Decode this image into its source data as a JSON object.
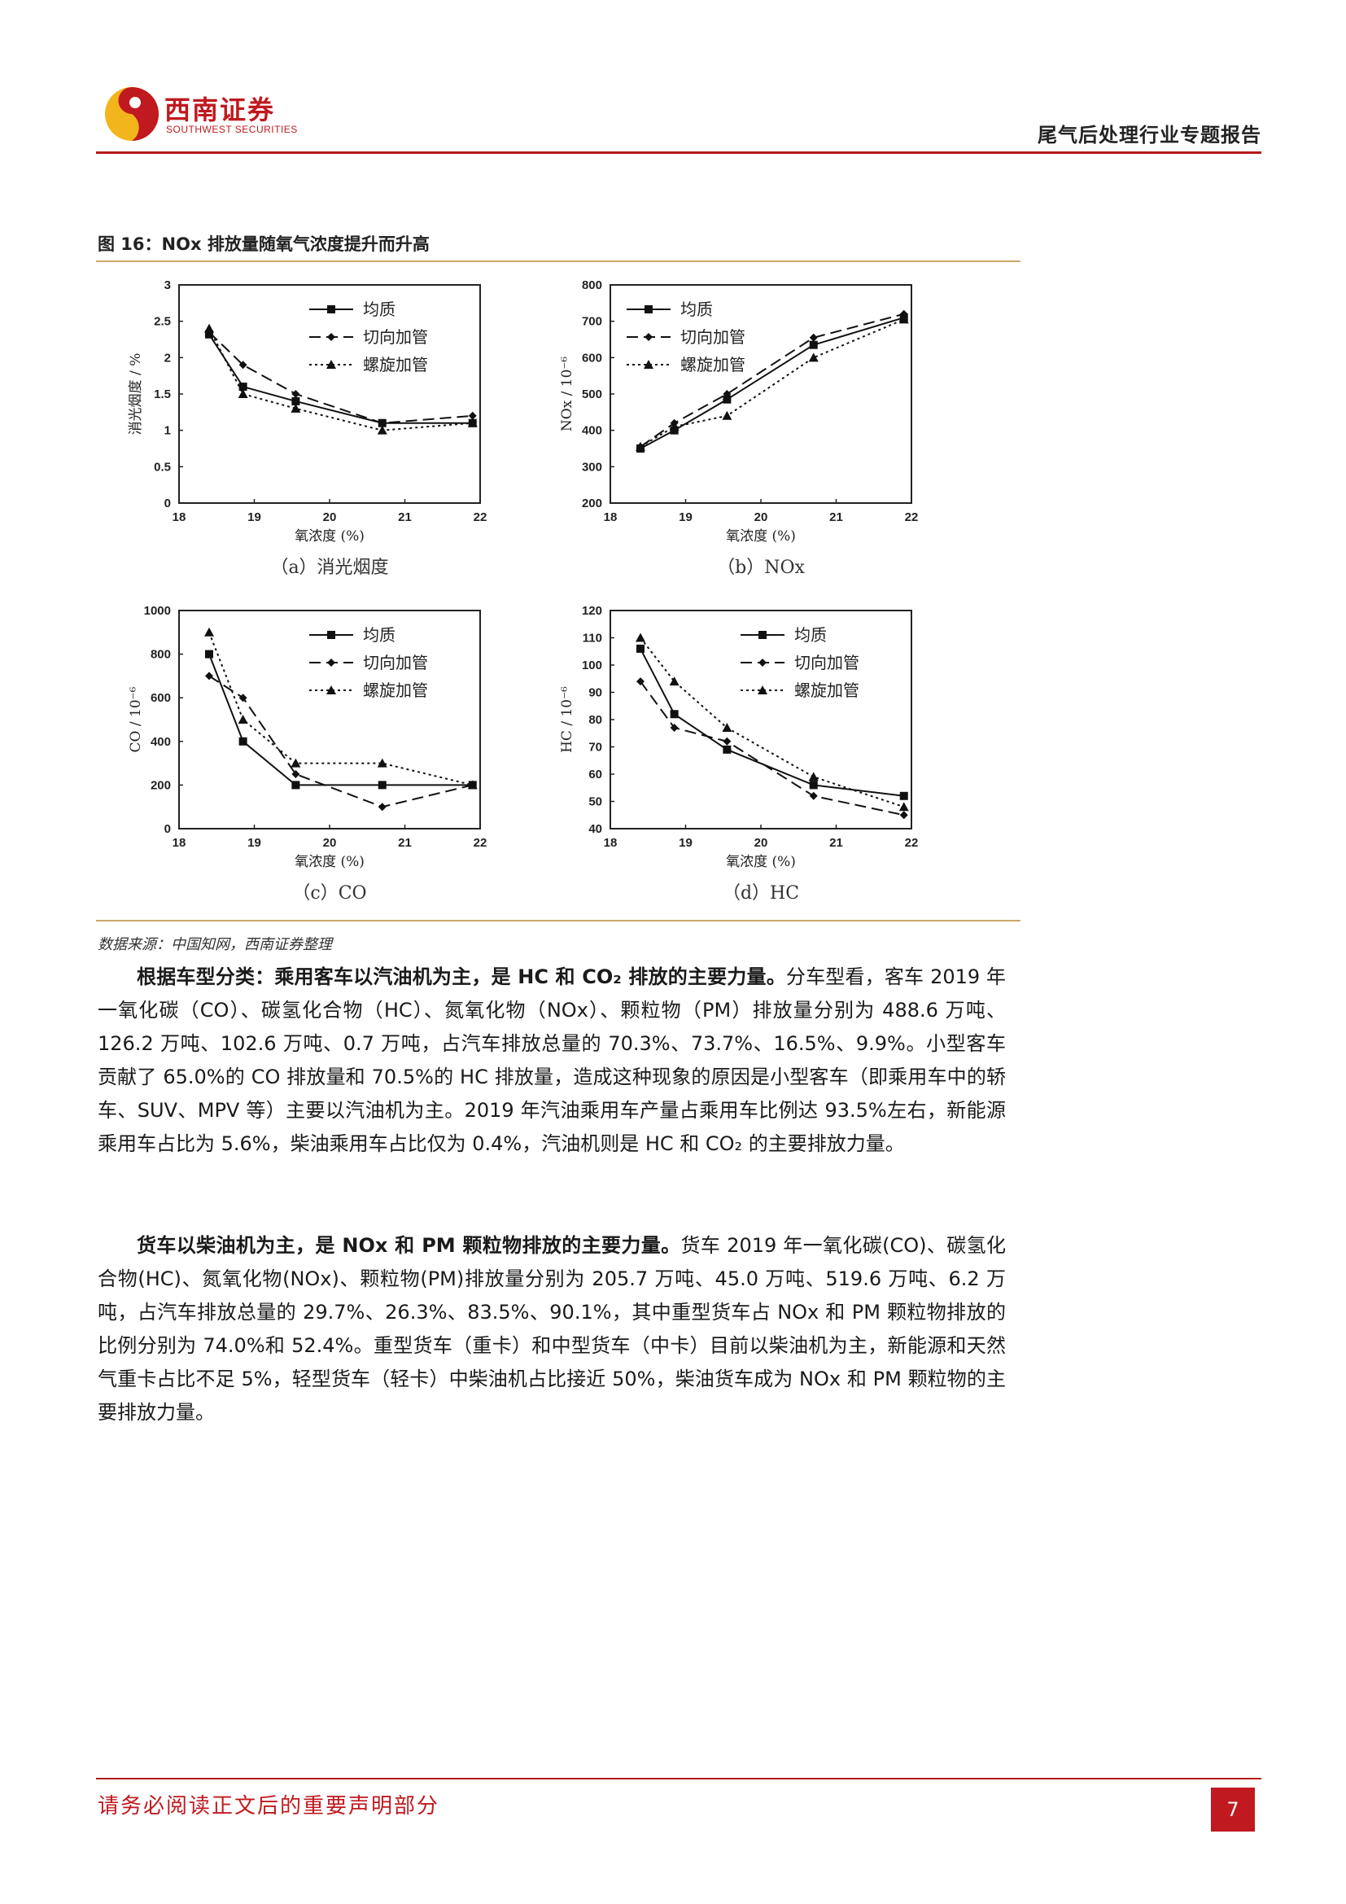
{
  "header": {
    "logo_cn": "西南证券",
    "logo_en": "SOUTHWEST SECURITIES",
    "report_title": "尾气后处理行业专题报告"
  },
  "figure": {
    "caption": "图 16：NOx 排放量随氧气浓度提升而升高",
    "source": "数据来源：中国知网，西南证券整理"
  },
  "chart_data": [
    {
      "type": "line",
      "title": "",
      "sublabel": "（a）消光烟度",
      "xlabel": "氧浓度 (%)",
      "ylabel": "消光烟度 / %",
      "xlim": [
        18,
        22
      ],
      "ylim": [
        0,
        3
      ],
      "x_ticks": [
        "18",
        "19",
        "20",
        "21",
        "22"
      ],
      "y_ticks": [
        "0",
        "0.5",
        "1",
        "1.5",
        "2",
        "2.5",
        "3"
      ],
      "legend_position": "top-right",
      "series": [
        {
          "name": "均质",
          "x": [
            18.4,
            18.85,
            19.55,
            20.7,
            21.9
          ],
          "values": [
            2.32,
            1.6,
            1.4,
            1.1,
            1.1
          ]
        },
        {
          "name": "切向加管",
          "x": [
            18.4,
            18.85,
            19.55,
            20.7,
            21.9
          ],
          "values": [
            2.35,
            1.9,
            1.5,
            1.1,
            1.2
          ]
        },
        {
          "name": "螺旋加管",
          "x": [
            18.4,
            18.85,
            19.55,
            20.7,
            21.9
          ],
          "values": [
            2.4,
            1.5,
            1.3,
            1.0,
            1.1
          ]
        }
      ]
    },
    {
      "type": "line",
      "title": "",
      "sublabel": "（b）NOx",
      "xlabel": "氧浓度 (%)",
      "ylabel": "NOx / 10⁻⁶",
      "xlim": [
        18,
        22
      ],
      "ylim": [
        200,
        800
      ],
      "x_ticks": [
        "18",
        "19",
        "20",
        "21",
        "22"
      ],
      "y_ticks": [
        "200",
        "300",
        "400",
        "500",
        "600",
        "700",
        "800"
      ],
      "legend_position": "top-left",
      "series": [
        {
          "name": "均质",
          "x": [
            18.4,
            18.85,
            19.55,
            20.7,
            21.9
          ],
          "values": [
            350,
            400,
            485,
            635,
            710
          ]
        },
        {
          "name": "切向加管",
          "x": [
            18.4,
            18.85,
            19.55,
            20.7,
            21.9
          ],
          "values": [
            355,
            420,
            500,
            655,
            720
          ]
        },
        {
          "name": "螺旋加管",
          "x": [
            18.4,
            18.85,
            19.55,
            20.7,
            21.9
          ],
          "values": [
            355,
            410,
            440,
            600,
            705
          ]
        }
      ]
    },
    {
      "type": "line",
      "title": "",
      "sublabel": "（c）CO",
      "xlabel": "氧浓度 (%)",
      "ylabel": "CO / 10⁻⁶",
      "xlim": [
        18,
        22
      ],
      "ylim": [
        0,
        1000
      ],
      "x_ticks": [
        "18",
        "19",
        "20",
        "21",
        "22"
      ],
      "y_ticks": [
        "0",
        "200",
        "400",
        "600",
        "800",
        "1000"
      ],
      "legend_position": "top-right",
      "series": [
        {
          "name": "均质",
          "x": [
            18.4,
            18.85,
            19.55,
            20.7,
            21.9
          ],
          "values": [
            800,
            400,
            200,
            200,
            200
          ]
        },
        {
          "name": "切向加管",
          "x": [
            18.4,
            18.85,
            19.55,
            20.7,
            21.9
          ],
          "values": [
            700,
            600,
            250,
            100,
            200
          ]
        },
        {
          "name": "螺旋加管",
          "x": [
            18.4,
            18.85,
            19.55,
            20.7,
            21.9
          ],
          "values": [
            900,
            500,
            300,
            300,
            200
          ]
        }
      ]
    },
    {
      "type": "line",
      "title": "",
      "sublabel": "（d）HC",
      "xlabel": "氧浓度 (%)",
      "ylabel": "HC / 10⁻⁶",
      "xlim": [
        18,
        22
      ],
      "ylim": [
        40,
        120
      ],
      "x_ticks": [
        "18",
        "19",
        "20",
        "21",
        "22"
      ],
      "y_ticks": [
        "40",
        "50",
        "60",
        "70",
        "80",
        "90",
        "100",
        "110",
        "120"
      ],
      "legend_position": "top-right",
      "series": [
        {
          "name": "均质",
          "x": [
            18.4,
            18.85,
            19.55,
            20.7,
            21.9
          ],
          "values": [
            106,
            82,
            69,
            56,
            52
          ]
        },
        {
          "name": "切向加管",
          "x": [
            18.4,
            18.85,
            19.55,
            20.7,
            21.9
          ],
          "values": [
            94,
            77,
            72,
            52,
            45
          ]
        },
        {
          "name": "螺旋加管",
          "x": [
            18.4,
            18.85,
            19.55,
            20.7,
            21.9
          ],
          "values": [
            110,
            94,
            77,
            59,
            48
          ]
        }
      ]
    }
  ],
  "paragraphs": [
    {
      "bold": "根据车型分类：乘用客车以汽油机为主，是 HC 和 CO₂ 排放的主要力量。",
      "text": "分车型看，客车 2019 年一氧化碳（CO）、碳氢化合物（HC）、氮氧化物（NOx）、颗粒物（PM）排放量分别为 488.6 万吨、126.2 万吨、102.6 万吨、0.7 万吨，占汽车排放总量的 70.3%、73.7%、16.5%、9.9%。小型客车贡献了 65.0%的 CO 排放量和 70.5%的 HC 排放量，造成这种现象的原因是小型客车（即乘用车中的轿车、SUV、MPV 等）主要以汽油机为主。2019 年汽油乘用车产量占乘用车比例达 93.5%左右，新能源乘用车占比为 5.6%，柴油乘用车占比仅为 0.4%，汽油机则是 HC 和 CO₂ 的主要排放力量。"
    },
    {
      "bold": "货车以柴油机为主，是 NOx 和 PM 颗粒物排放的主要力量。",
      "text": "货车 2019 年一氧化碳(CO)、碳氢化合物(HC)、氮氧化物(NOx)、颗粒物(PM)排放量分别为 205.7 万吨、45.0 万吨、519.6 万吨、6.2 万吨，占汽车排放总量的 29.7%、26.3%、83.5%、90.1%，其中重型货车占 NOx 和 PM 颗粒物排放的比例分别为 74.0%和 52.4%。重型货车（重卡）和中型货车（中卡）目前以柴油机为主，新能源和天然气重卡占比不足 5%，轻型货车（轻卡）中柴油机占比接近 50%，柴油货车成为 NOx 和 PM 颗粒物的主要排放力量。"
    }
  ],
  "footer": {
    "disclaimer": "请务必阅读正文后的重要声明部分",
    "page_number": "7"
  }
}
